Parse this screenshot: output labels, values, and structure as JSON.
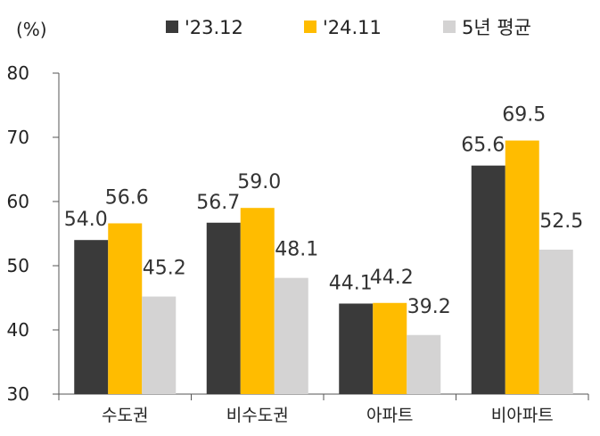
{
  "chart_data": {
    "type": "bar",
    "unit_label": "(%)",
    "categories": [
      "수도권",
      "비수도권",
      "아파트",
      "비아파트"
    ],
    "series": [
      {
        "name": "'23.12",
        "color": "#3a3a3a",
        "values": [
          54.0,
          56.7,
          44.1,
          65.6
        ]
      },
      {
        "name": "'24.11",
        "color": "#ffbc00",
        "values": [
          56.6,
          59.0,
          44.2,
          69.5
        ]
      },
      {
        "name": "5년 평균",
        "color": "#d4d3d3",
        "values": [
          45.2,
          48.1,
          39.2,
          52.5
        ]
      }
    ],
    "data_labels": [
      [
        "54.0",
        "56.7",
        "44.1",
        "65.6"
      ],
      [
        "56.6",
        "59.0",
        "44.2",
        "69.5"
      ],
      [
        "45.2",
        "48.1",
        "39.2",
        "52.5"
      ]
    ],
    "ylim": [
      30,
      80
    ],
    "yticks": [
      "30",
      "40",
      "50",
      "60",
      "70",
      "80"
    ],
    "legend_position": "top",
    "grid": false,
    "xlabel": "",
    "ylabel": ""
  }
}
